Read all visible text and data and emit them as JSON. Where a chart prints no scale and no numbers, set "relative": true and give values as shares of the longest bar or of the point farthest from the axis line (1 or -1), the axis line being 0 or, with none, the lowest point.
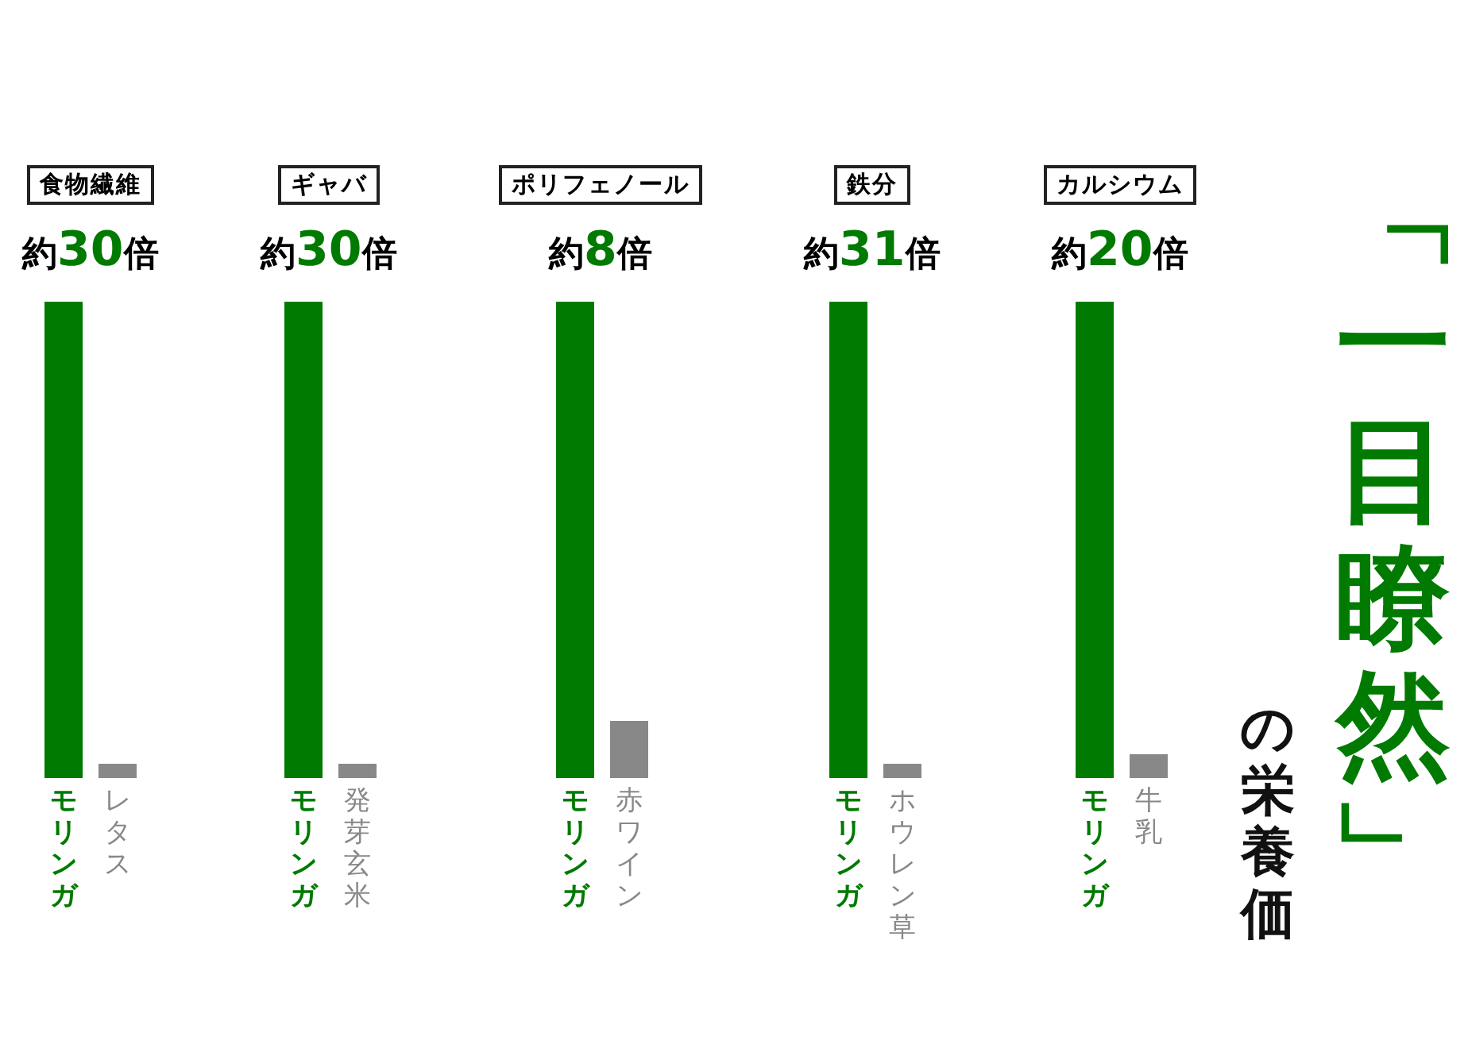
{
  "chart_data": [
    {
      "type": "bar",
      "title": "食物繊維",
      "subtitle": "約30倍",
      "categories": [
        "モリンガ",
        "レタス"
      ],
      "values": [
        1,
        0.03
      ],
      "colors": [
        "#007a00",
        "#888888"
      ],
      "relative": true
    },
    {
      "type": "bar",
      "title": "ギャバ",
      "subtitle": "約30倍",
      "categories": [
        "モリンガ",
        "発芽玄米"
      ],
      "values": [
        1,
        0.03
      ],
      "colors": [
        "#007a00",
        "#888888"
      ],
      "relative": true
    },
    {
      "type": "bar",
      "title": "ポリフェノール",
      "subtitle": "約8倍",
      "categories": [
        "モリンガ",
        "赤ワイン"
      ],
      "values": [
        1,
        0.12
      ],
      "colors": [
        "#007a00",
        "#888888"
      ],
      "relative": true
    },
    {
      "type": "bar",
      "title": "鉄分",
      "subtitle": "約31倍",
      "categories": [
        "モリンガ",
        "ホウレン草"
      ],
      "values": [
        1,
        0.03
      ],
      "colors": [
        "#007a00",
        "#888888"
      ],
      "relative": true
    },
    {
      "type": "bar",
      "title": "カルシウム",
      "subtitle": "約20倍",
      "categories": [
        "モリンガ",
        "牛乳"
      ],
      "values": [
        1,
        0.05
      ],
      "colors": [
        "#007a00",
        "#888888"
      ],
      "relative": true
    },
    {
      "type": "other",
      "title": "「一目瞭然」",
      "subtitle": "の栄養価"
    }
  ]
}
